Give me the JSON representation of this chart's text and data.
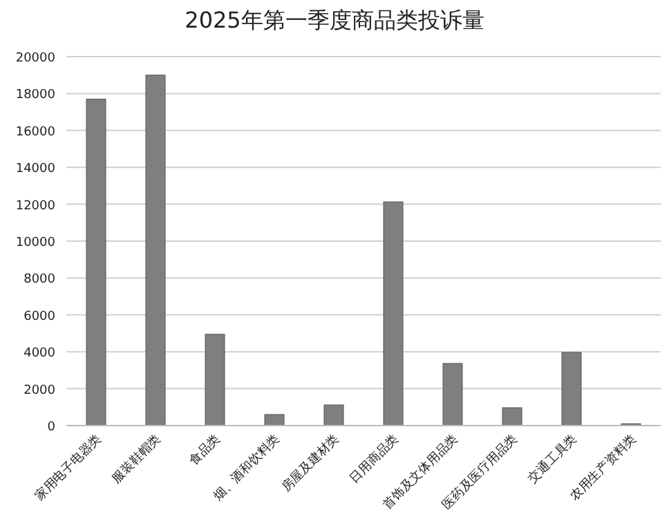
{
  "chart_data": {
    "type": "bar",
    "title": "2025年第一季度商品类投诉量",
    "categories": [
      "家用电子电器类",
      "服装鞋帽类",
      "食品类",
      "烟、酒和饮料类",
      "房屋及建材类",
      "日用商品类",
      "首饰及文体用品类",
      "医药及医疗用品类",
      "交通工具类",
      "农用生产资料类"
    ],
    "values": [
      17700,
      19000,
      4950,
      600,
      1120,
      12130,
      3370,
      970,
      3970,
      100
    ],
    "color": "#7f7f7f",
    "ylim": [
      0,
      20000
    ],
    "yticks": [
      0,
      2000,
      4000,
      6000,
      8000,
      10000,
      12000,
      14000,
      16000,
      18000,
      20000
    ],
    "grid": "y"
  }
}
